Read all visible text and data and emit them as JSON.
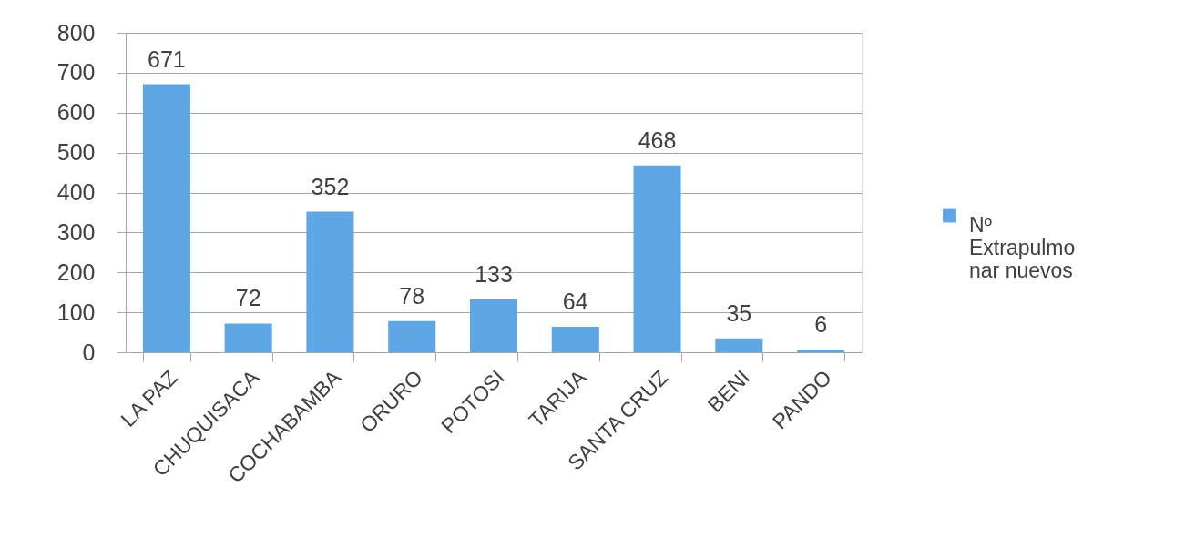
{
  "chart_data": {
    "type": "bar",
    "categories": [
      "LA PAZ",
      "CHUQUISACA",
      "COCHABAMBA",
      "ORURO",
      "POTOSI",
      "TARIJA",
      "SANTA CRUZ",
      "BENI",
      "PANDO"
    ],
    "series": [
      {
        "name": "Nº Extrapulmonar nuevos",
        "color": "#5ea6e4",
        "values": [
          671,
          72,
          352,
          78,
          133,
          64,
          468,
          35,
          6
        ]
      }
    ],
    "ylim": [
      0,
      800
    ],
    "yticks": [
      0,
      100,
      200,
      300,
      400,
      500,
      600,
      700,
      800
    ],
    "grid": "y",
    "legend": "right",
    "data_labels": true
  }
}
